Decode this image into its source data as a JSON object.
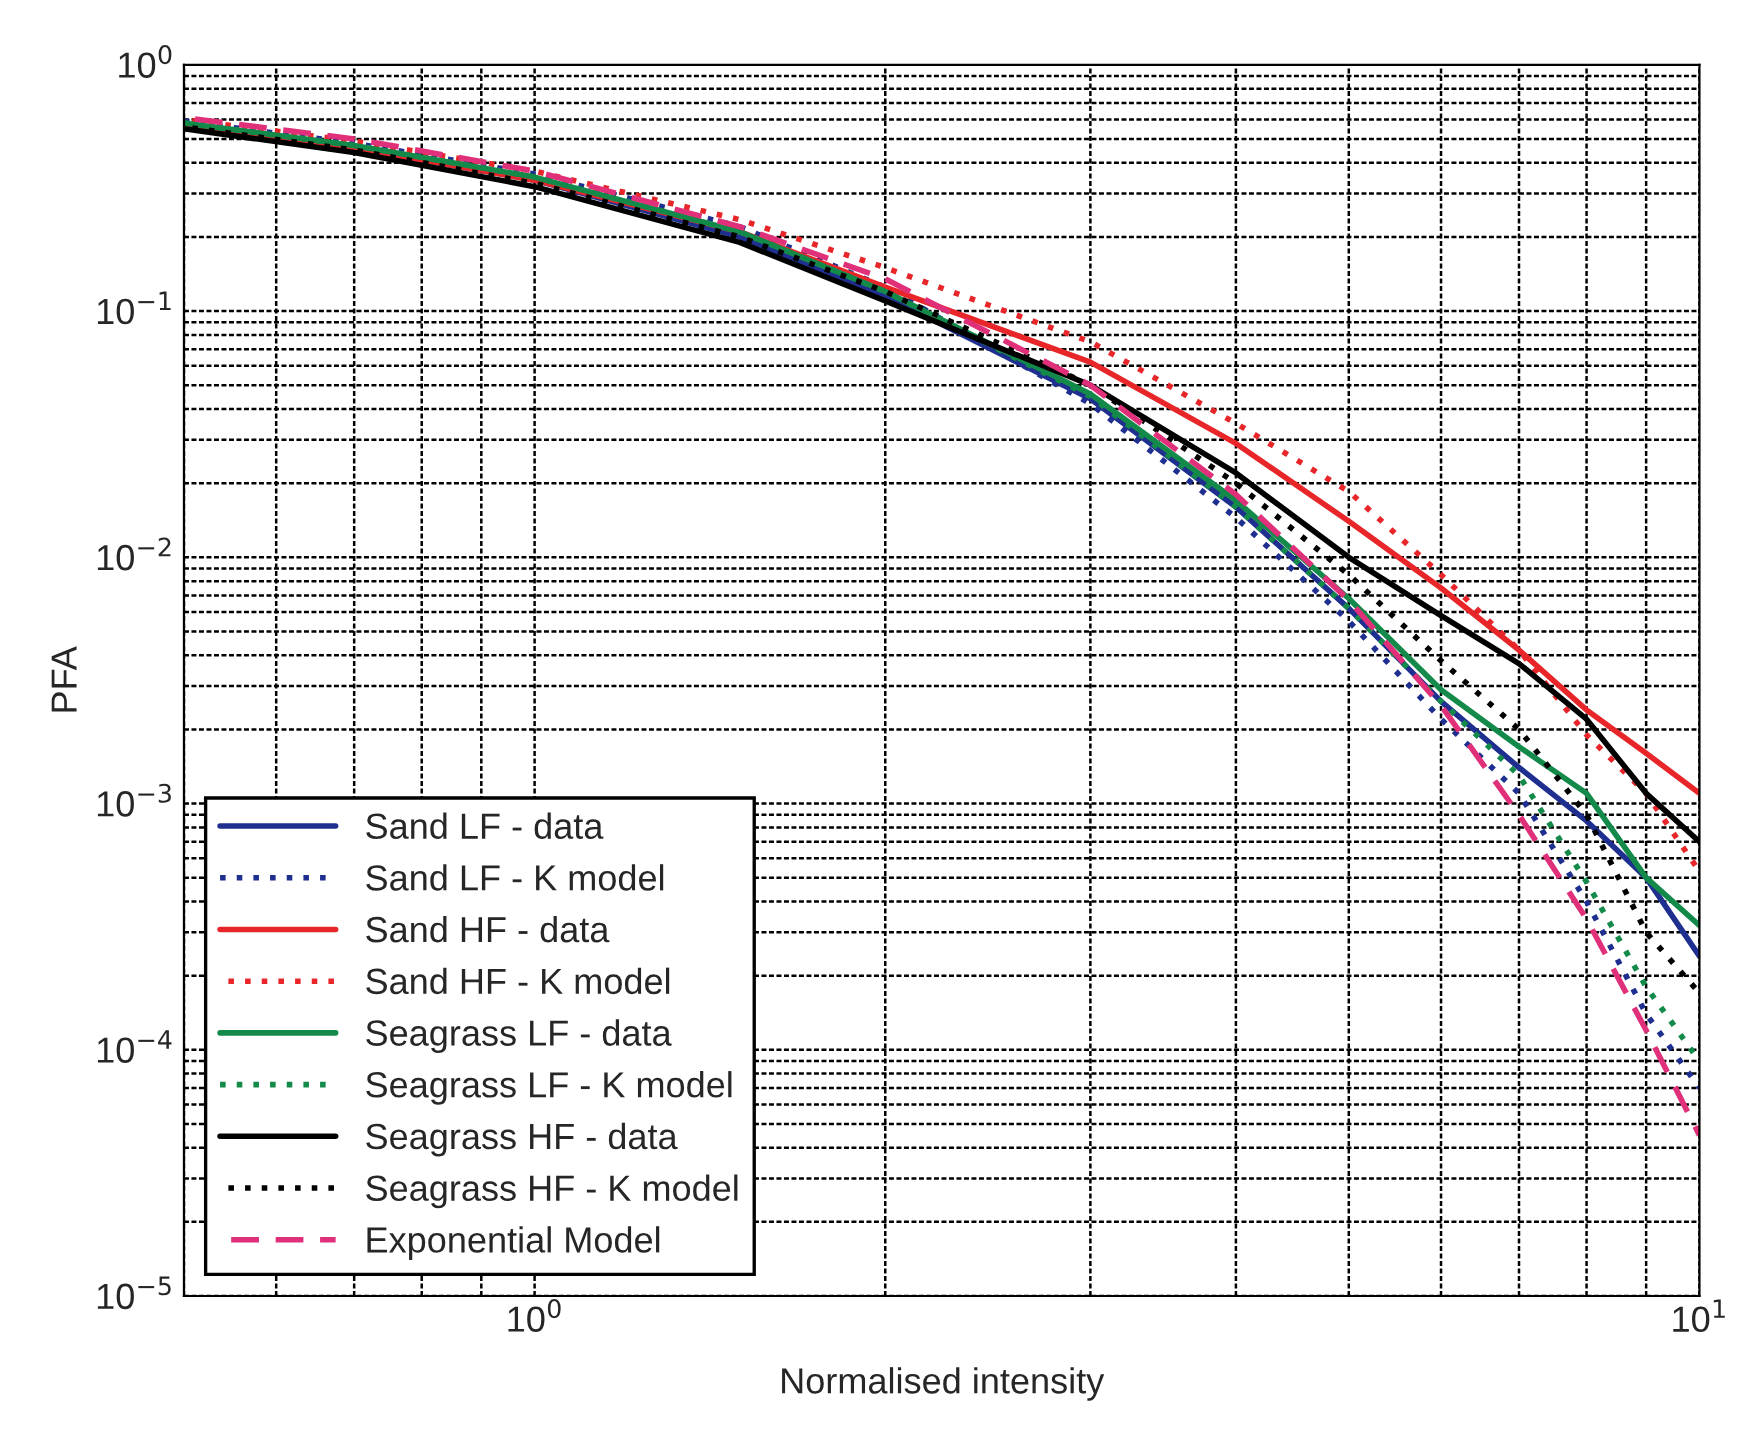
{
  "chart_data": {
    "type": "line",
    "xlabel": "Normalised intensity",
    "ylabel": "PFA",
    "x": [
      0.5,
      0.7,
      1,
      1.5,
      2,
      3,
      4,
      5,
      6,
      7,
      8,
      9,
      10
    ],
    "log": "xy",
    "grid": true,
    "legend": "bottom left",
    "xlim": [
      0.5,
      10
    ],
    "ylim": [
      1e-05,
      1
    ],
    "xticks": [
      {
        "value": 1,
        "label": "10$^{0}$"
      },
      {
        "value": 10,
        "label": "10$^{1}$"
      }
    ],
    "yticks": [
      {
        "value": 1e-05,
        "label": "10$^{−5}$"
      },
      {
        "value": 0.0001,
        "label": "10$^{−4}$"
      },
      {
        "value": 0.001,
        "label": "10$^{−3}$"
      },
      {
        "value": 0.01,
        "label": "10$^{−2}$"
      },
      {
        "value": 0.1,
        "label": "10$^{−1}$"
      },
      {
        "value": 1,
        "label": "10$^{0}$"
      }
    ],
    "series": [
      {
        "name": "Sand LF - data",
        "color": "#1f2f8f",
        "line_style": "solid",
        "values": [
          0.57,
          0.46,
          0.34,
          0.2,
          0.115,
          0.044,
          0.016,
          0.0062,
          0.0026,
          0.0014,
          0.00085,
          0.0005,
          0.00024
        ]
      },
      {
        "name": "Sand LF - K model",
        "color": "#1f2f8f",
        "line_style": "dotted",
        "values": [
          0.59,
          0.48,
          0.36,
          0.22,
          0.125,
          0.042,
          0.0145,
          0.0055,
          0.0022,
          0.0011,
          0.0004,
          0.00014,
          7e-05
        ]
      },
      {
        "name": "Sand HF - data",
        "color": "#e8262a",
        "line_style": "solid",
        "values": [
          0.57,
          0.46,
          0.34,
          0.21,
          0.125,
          0.062,
          0.029,
          0.014,
          0.0075,
          0.0042,
          0.0024,
          0.0016,
          0.0011
        ]
      },
      {
        "name": "Sand HF - K model",
        "color": "#e8262a",
        "line_style": "dotted",
        "values": [
          0.6,
          0.49,
          0.37,
          0.235,
          0.15,
          0.075,
          0.035,
          0.0185,
          0.0085,
          0.0042,
          0.0019,
          0.0011,
          0.00053
        ]
      },
      {
        "name": "Seagrass LF - data",
        "color": "#138a4a",
        "line_style": "solid",
        "values": [
          0.58,
          0.47,
          0.35,
          0.21,
          0.12,
          0.046,
          0.017,
          0.0068,
          0.0029,
          0.0017,
          0.0011,
          0.0005,
          0.00032
        ]
      },
      {
        "name": "Seagrass LF - K model",
        "color": "#138a4a",
        "line_style": "dotted",
        "values": [
          0.58,
          0.47,
          0.35,
          0.21,
          0.12,
          0.045,
          0.016,
          0.0062,
          0.0026,
          0.0013,
          0.00048,
          0.00018,
          9e-05
        ]
      },
      {
        "name": "Seagrass HF - data",
        "color": "#000000",
        "line_style": "solid",
        "values": [
          0.55,
          0.44,
          0.32,
          0.19,
          0.11,
          0.05,
          0.022,
          0.01,
          0.0058,
          0.0037,
          0.0022,
          0.0011,
          0.0007
        ]
      },
      {
        "name": "Seagrass HF - K model",
        "color": "#000000",
        "line_style": "dotted",
        "values": [
          0.56,
          0.45,
          0.33,
          0.2,
          0.12,
          0.05,
          0.02,
          0.0085,
          0.0038,
          0.002,
          0.0009,
          0.0003,
          0.00017
        ]
      },
      {
        "name": "Exponential Model",
        "color": "#e0307a",
        "line_style": "dashed",
        "values": [
          0.61,
          0.5,
          0.37,
          0.22,
          0.135,
          0.05,
          0.018,
          0.0067,
          0.0025,
          0.0009,
          0.00034,
          0.00012,
          4.5e-05
        ]
      }
    ]
  }
}
